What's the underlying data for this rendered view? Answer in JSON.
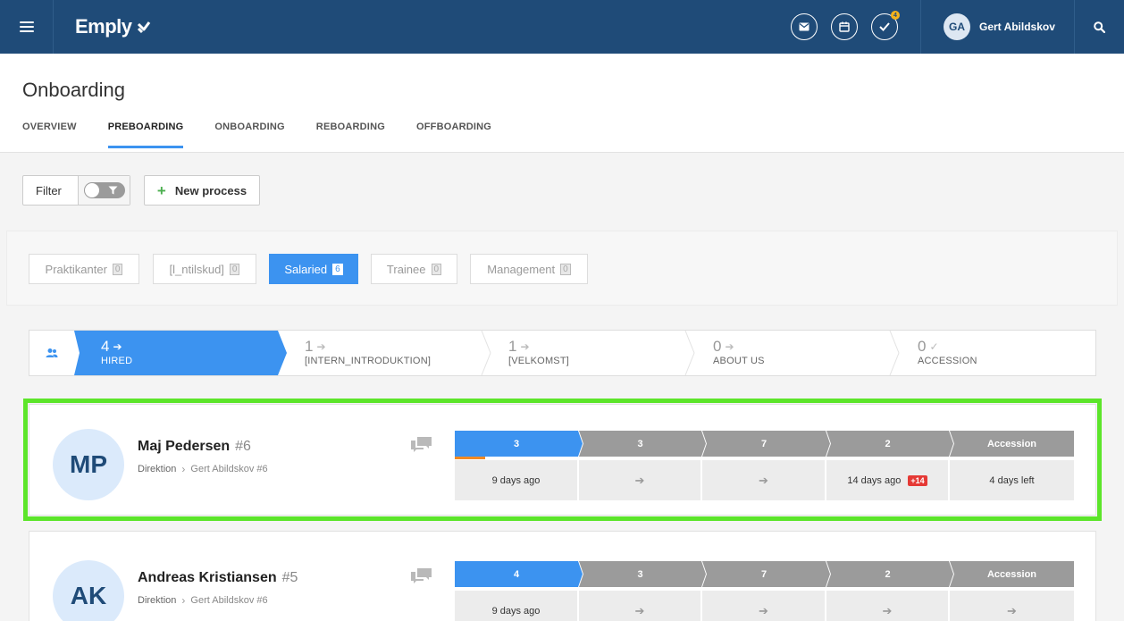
{
  "topbar": {
    "logo_text": "Emply",
    "user_initials": "GA",
    "user_name": "Gert Abildskov",
    "tasks_badge": "4"
  },
  "page": {
    "title": "Onboarding",
    "tabs": [
      {
        "label": "OVERVIEW",
        "active": false
      },
      {
        "label": "PREBOARDING",
        "active": true
      },
      {
        "label": "ONBOARDING",
        "active": false
      },
      {
        "label": "REBOARDING",
        "active": false
      },
      {
        "label": "OFFBOARDING",
        "active": false
      }
    ]
  },
  "toolbar": {
    "filter_label": "Filter",
    "new_process_label": "New process"
  },
  "categories": [
    {
      "label": "Praktikanter",
      "count": "0",
      "active": false
    },
    {
      "label": "[l_ntilskud]",
      "count": "0",
      "active": false
    },
    {
      "label": "Salaried",
      "count": "6",
      "active": true
    },
    {
      "label": "Trainee",
      "count": "0",
      "active": false
    },
    {
      "label": "Management",
      "count": "0",
      "active": false
    }
  ],
  "pipeline": [
    {
      "count": "4",
      "label": "HIRED",
      "symbol": "➔",
      "active": true
    },
    {
      "count": "1",
      "label": "[INTERN_INTRODUKTION]",
      "symbol": "➔",
      "active": false
    },
    {
      "count": "1",
      "label": "[VELKOMST]",
      "symbol": "➔",
      "active": false
    },
    {
      "count": "0",
      "label": "ABOUT US",
      "symbol": "➔",
      "active": false
    },
    {
      "count": "0",
      "label": "ACCESSION",
      "symbol": "✓",
      "active": false
    }
  ],
  "processes": [
    {
      "initials": "MP",
      "name": "Maj Pedersen",
      "id": "#6",
      "department": "Direktion",
      "responsible": "Gert Abildskov #6",
      "steps": [
        {
          "head": "3",
          "body": "9 days ago",
          "badge": ""
        },
        {
          "head": "3",
          "body": "➔",
          "badge": ""
        },
        {
          "head": "7",
          "body": "➔",
          "badge": ""
        },
        {
          "head": "2",
          "body": "14 days ago",
          "badge": "+14"
        },
        {
          "head": "Accession",
          "body": "4 days left",
          "badge": ""
        }
      ]
    },
    {
      "initials": "AK",
      "name": "Andreas Kristiansen",
      "id": "#5",
      "department": "Direktion",
      "responsible": "Gert Abildskov #6",
      "steps": [
        {
          "head": "4",
          "body": "9 days ago",
          "badge": ""
        },
        {
          "head": "3",
          "body": "➔",
          "badge": ""
        },
        {
          "head": "7",
          "body": "➔",
          "badge": ""
        },
        {
          "head": "2",
          "body": "➔",
          "badge": ""
        },
        {
          "head": "Accession",
          "body": "➔",
          "badge": ""
        }
      ]
    }
  ],
  "colors": {
    "topbar": "#1f4b78",
    "accent_blue": "#3c93f0",
    "step_grey": "#9b9b9b",
    "selected_outline": "#5ce52a",
    "overdue_red": "#e53935"
  }
}
